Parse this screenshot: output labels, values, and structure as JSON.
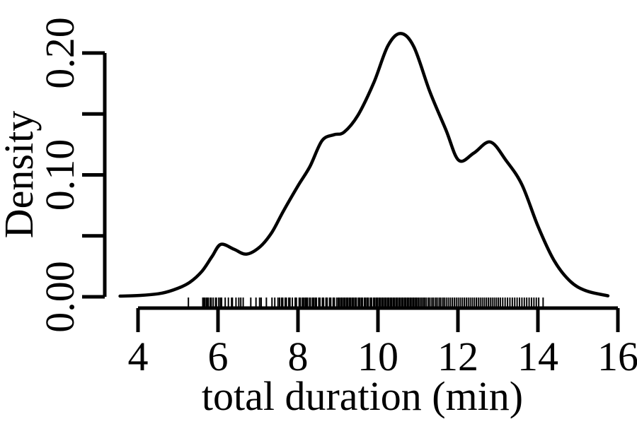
{
  "chart_data": {
    "type": "line",
    "subtype": "kernel-density-with-rug",
    "title": "",
    "xlabel": "total duration (min)",
    "ylabel": "Density",
    "xlim": [
      4,
      16
    ],
    "ylim": [
      0,
      0.22
    ],
    "x_ticks": [
      4,
      6,
      8,
      10,
      12,
      14,
      16
    ],
    "x_tick_labels": [
      "4",
      "6",
      "8",
      "10",
      "12",
      "14",
      "16"
    ],
    "y_ticks": [
      0,
      0.05,
      0.1,
      0.15,
      0.2
    ],
    "y_tick_labels": [
      "0.00",
      "",
      "0.10",
      "",
      "0.20"
    ],
    "grid": false,
    "legend": "none",
    "colors": {
      "line": "#000000",
      "text": "#000000",
      "background": "#ffffff"
    },
    "series": [
      {
        "name": "density-curve",
        "points": [
          [
            3.55,
            0.0006
          ],
          [
            4.1,
            0.0012
          ],
          [
            4.6,
            0.003
          ],
          [
            5.0,
            0.007
          ],
          [
            5.3,
            0.012
          ],
          [
            5.6,
            0.021
          ],
          [
            5.85,
            0.033
          ],
          [
            6.07,
            0.043
          ],
          [
            6.4,
            0.039
          ],
          [
            6.71,
            0.035
          ],
          [
            7.05,
            0.041
          ],
          [
            7.35,
            0.053
          ],
          [
            7.63,
            0.07
          ],
          [
            8.0,
            0.091
          ],
          [
            8.3,
            0.107
          ],
          [
            8.6,
            0.128
          ],
          [
            8.9,
            0.133
          ],
          [
            9.15,
            0.135
          ],
          [
            9.5,
            0.149
          ],
          [
            9.9,
            0.176
          ],
          [
            10.25,
            0.206
          ],
          [
            10.57,
            0.216
          ],
          [
            10.9,
            0.205
          ],
          [
            11.3,
            0.168
          ],
          [
            11.7,
            0.137
          ],
          [
            12.02,
            0.112
          ],
          [
            12.4,
            0.118
          ],
          [
            12.81,
            0.127
          ],
          [
            13.2,
            0.112
          ],
          [
            13.6,
            0.092
          ],
          [
            14.0,
            0.058
          ],
          [
            14.4,
            0.03
          ],
          [
            14.8,
            0.013
          ],
          [
            15.2,
            0.005
          ],
          [
            15.75,
            0.0008
          ]
        ]
      }
    ],
    "rug_values": [
      5.26,
      5.62,
      5.64,
      5.67,
      5.71,
      5.73,
      5.76,
      5.81,
      5.83,
      5.88,
      5.94,
      5.96,
      6.02,
      6.06,
      6.09,
      6.18,
      6.26,
      6.34,
      6.36,
      6.45,
      6.52,
      6.57,
      6.63,
      6.82,
      6.95,
      7.04,
      7.08,
      7.21,
      7.35,
      7.42,
      7.5,
      7.54,
      7.59,
      7.62,
      7.68,
      7.71,
      7.77,
      7.8,
      7.86,
      7.93,
      7.96,
      8.03,
      8.06,
      8.11,
      8.14,
      8.18,
      8.21,
      8.24,
      8.29,
      8.31,
      8.36,
      8.39,
      8.43,
      8.46,
      8.52,
      8.55,
      8.61,
      8.64,
      8.7,
      8.73,
      8.79,
      8.82,
      8.88,
      8.91,
      8.97,
      9.01,
      9.04,
      9.08,
      9.11,
      9.15,
      9.18,
      9.22,
      9.25,
      9.29,
      9.32,
      9.36,
      9.39,
      9.43,
      9.46,
      9.51,
      9.54,
      9.58,
      9.61,
      9.66,
      9.69,
      9.73,
      9.76,
      9.81,
      9.84,
      9.89,
      9.92,
      9.96,
      9.99,
      10.03,
      10.06,
      10.1,
      10.13,
      10.17,
      10.2,
      10.24,
      10.27,
      10.31,
      10.34,
      10.38,
      10.41,
      10.45,
      10.48,
      10.52,
      10.55,
      10.59,
      10.62,
      10.66,
      10.69,
      10.73,
      10.76,
      10.8,
      10.83,
      10.87,
      10.9,
      10.94,
      10.97,
      11.01,
      11.05,
      11.09,
      11.13,
      11.17,
      11.21,
      11.26,
      11.3,
      11.35,
      11.39,
      11.44,
      11.48,
      11.53,
      11.57,
      11.62,
      11.66,
      11.71,
      11.76,
      11.81,
      11.86,
      11.91,
      11.96,
      12.01,
      12.06,
      12.11,
      12.16,
      12.21,
      12.26,
      12.31,
      12.36,
      12.41,
      12.46,
      12.51,
      12.56,
      12.61,
      12.66,
      12.71,
      12.76,
      12.81,
      12.86,
      12.91,
      12.96,
      13.01,
      13.06,
      13.12,
      13.18,
      13.24,
      13.3,
      13.36,
      13.42,
      13.48,
      13.54,
      13.6,
      13.66,
      13.72,
      13.78,
      13.84,
      13.9,
      13.96,
      14.02,
      14.13
    ]
  }
}
